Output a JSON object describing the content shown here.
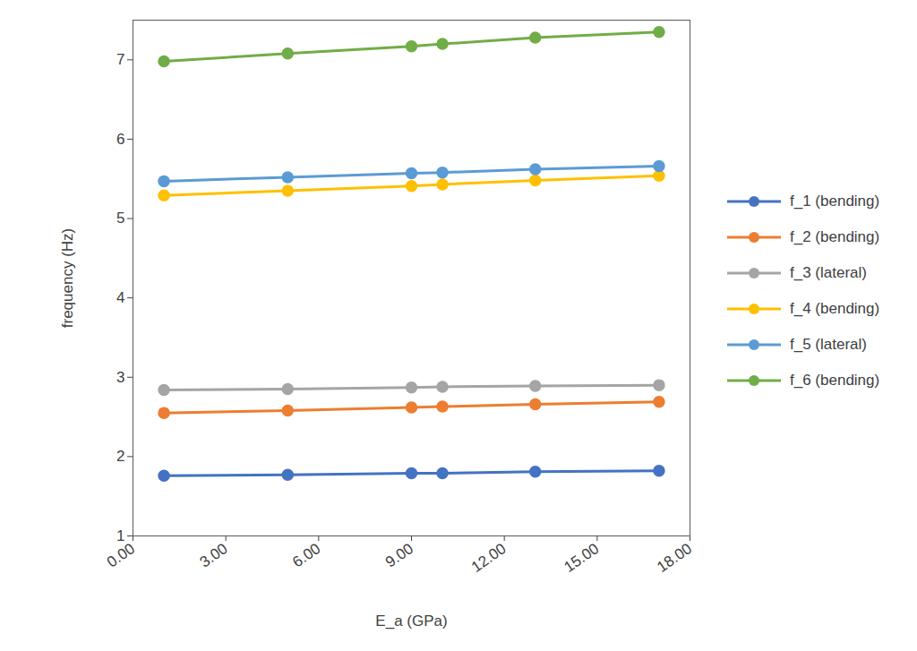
{
  "chart_data": {
    "type": "line",
    "x_label": "E_a (GPa)",
    "y_label": "frequency (Hz)",
    "x": [
      1,
      5,
      9,
      10,
      13,
      17
    ],
    "series": [
      {
        "name": "f_1 (bending)",
        "color": "#4472C4",
        "marker": "circle",
        "line_style": "solid",
        "values": [
          1.76,
          1.77,
          1.79,
          1.79,
          1.81,
          1.82
        ]
      },
      {
        "name": "f_2 (bending)",
        "color": "#ED7D31",
        "marker": "circle",
        "line_style": "solid",
        "values": [
          2.55,
          2.58,
          2.62,
          2.63,
          2.66,
          2.69
        ]
      },
      {
        "name": "f_3 (lateral)",
        "color": "#A5A5A5",
        "marker": "circle",
        "line_style": "solid",
        "values": [
          2.84,
          2.85,
          2.87,
          2.88,
          2.89,
          2.9
        ]
      },
      {
        "name": "f_4 (bending)",
        "color": "#FFC000",
        "marker": "circle",
        "line_style": "solid",
        "values": [
          5.29,
          5.35,
          5.41,
          5.43,
          5.48,
          5.54
        ]
      },
      {
        "name": "f_5 (lateral)",
        "color": "#5B9BD5",
        "marker": "circle",
        "line_style": "solid",
        "values": [
          5.47,
          5.52,
          5.57,
          5.58,
          5.62,
          5.66
        ]
      },
      {
        "name": "f_6 (bending)",
        "color": "#70AD47",
        "marker": "circle",
        "line_style": "solid",
        "values": [
          6.98,
          7.08,
          7.17,
          7.2,
          7.28,
          7.35
        ]
      }
    ],
    "xlim": [
      0,
      18
    ],
    "xticks": [
      {
        "value": 0,
        "label": "0.00"
      },
      {
        "value": 3,
        "label": "3.00"
      },
      {
        "value": 6,
        "label": "6.00"
      },
      {
        "value": 9,
        "label": "9.00"
      },
      {
        "value": 12,
        "label": "12.00"
      },
      {
        "value": 15,
        "label": "15.00"
      },
      {
        "value": 18,
        "label": "18.00"
      }
    ],
    "ylim": [
      1,
      7.5
    ],
    "yticks": [
      1,
      2,
      3,
      4,
      5,
      6,
      7
    ],
    "grid": false,
    "legend": "right"
  }
}
